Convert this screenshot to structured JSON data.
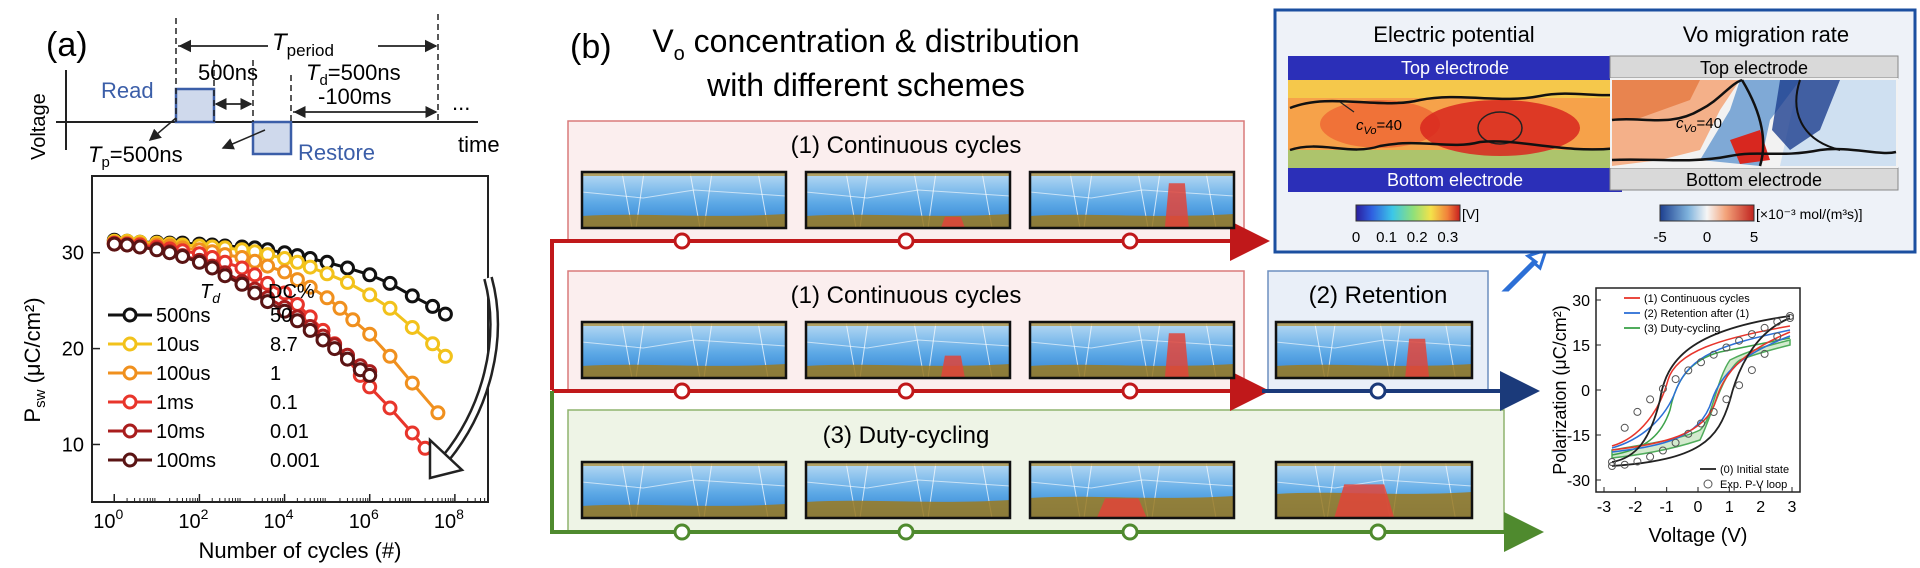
{
  "panel_a": {
    "label": "(a)",
    "timing": {
      "y_axis": "Voltage",
      "x_axis": "time",
      "period": "T",
      "period_sub": "period",
      "read": "Read",
      "restore": "Restore",
      "gap": "500ns",
      "tp": "T",
      "tp_sub": "p",
      "tp_val": "=500ns",
      "td": "T",
      "td_sub": "d",
      "td_val": "=500ns",
      "td_val2": "-100ms",
      "dots": "..."
    },
    "chart_data": {
      "type": "line",
      "ylabel": "P",
      "ylabel_sub": "sw",
      "ylabel_unit": " (μC/cm²)",
      "xlabel": "Number of cycles (#)",
      "x_scale": "log10",
      "xlim": [
        0.3,
        600000000
      ],
      "ylim": [
        4,
        38
      ],
      "x_ticks": [
        "10^0",
        "10^2",
        "10^4",
        "10^6",
        "10^8"
      ],
      "y_ticks": [
        10,
        20,
        30
      ],
      "legend_header": [
        "T_d",
        "DC%"
      ],
      "series": [
        {
          "name": "500ns",
          "dc": "50",
          "color": "#111111",
          "x": [
            1,
            2,
            4,
            10,
            20,
            40,
            100,
            200,
            400,
            1000,
            2000,
            4000,
            10000,
            20000,
            40000,
            100000,
            300000,
            1000000,
            3000000,
            10000000,
            30000000,
            60000000
          ],
          "y": [
            31.3,
            31.2,
            31.1,
            31.1,
            31.0,
            31.0,
            30.9,
            30.8,
            30.7,
            30.6,
            30.5,
            30.3,
            30.0,
            29.7,
            29.4,
            29.0,
            28.4,
            27.7,
            26.8,
            25.5,
            24.4,
            23.6
          ]
        },
        {
          "name": "10us",
          "dc": "8.7",
          "color": "#f2c21b",
          "x": [
            1,
            2,
            4,
            10,
            20,
            40,
            100,
            200,
            400,
            1000,
            2000,
            4000,
            10000,
            20000,
            40000,
            100000,
            300000,
            1000000,
            3000000,
            10000000,
            30000000,
            60000000
          ],
          "y": [
            31.2,
            31.2,
            31.1,
            31.0,
            30.9,
            30.8,
            30.7,
            30.6,
            30.5,
            30.3,
            30.1,
            29.8,
            29.4,
            29.0,
            28.5,
            27.8,
            26.9,
            25.6,
            24.2,
            22.2,
            20.5,
            19.2
          ]
        },
        {
          "name": "100us",
          "dc": "1",
          "color": "#f0901e",
          "x": [
            1,
            2,
            4,
            10,
            20,
            40,
            100,
            200,
            400,
            1000,
            2000,
            4000,
            10000,
            20000,
            40000,
            100000,
            200000,
            400000,
            1000000,
            3000000,
            10000000,
            40000000
          ],
          "y": [
            31.0,
            31.0,
            30.9,
            30.8,
            30.7,
            30.5,
            30.3,
            30.1,
            29.8,
            29.5,
            29.1,
            28.6,
            28.0,
            27.2,
            26.4,
            25.3,
            24.2,
            23.0,
            21.5,
            19.2,
            16.4,
            13.3
          ]
        },
        {
          "name": "1ms",
          "dc": "0.1",
          "color": "#e8352b",
          "x": [
            1,
            2,
            4,
            10,
            20,
            40,
            100,
            200,
            400,
            1000,
            2000,
            4000,
            10000,
            20000,
            40000,
            80000,
            150000,
            300000,
            600000,
            1000000,
            3000000,
            10000000,
            20000000
          ],
          "y": [
            31.0,
            30.9,
            30.8,
            30.6,
            30.4,
            30.2,
            29.9,
            29.5,
            29.0,
            28.4,
            27.7,
            26.8,
            25.8,
            24.6,
            23.3,
            21.9,
            20.5,
            18.9,
            17.2,
            16.0,
            13.8,
            11.2,
            9.6
          ]
        },
        {
          "name": "10ms",
          "dc": "0.01",
          "color": "#a91d1d",
          "x": [
            1,
            2,
            4,
            10,
            20,
            40,
            100,
            200,
            400,
            1000,
            2000,
            4000,
            10000,
            20000,
            40000,
            80000,
            150000,
            300000,
            600000,
            1000000
          ],
          "y": [
            30.9,
            30.8,
            30.6,
            30.4,
            30.1,
            29.7,
            29.2,
            28.6,
            27.9,
            27.0,
            26.2,
            25.3,
            24.3,
            23.3,
            22.3,
            21.3,
            20.4,
            19.3,
            18.2,
            17.6
          ]
        },
        {
          "name": "100ms",
          "dc": "0.001",
          "color": "#5a1414",
          "x": [
            1,
            2,
            4,
            10,
            20,
            40,
            100,
            200,
            400,
            1000,
            2000,
            4000,
            10000,
            20000,
            40000,
            80000,
            150000,
            300000,
            600000,
            1000000
          ],
          "y": [
            30.9,
            30.8,
            30.6,
            30.3,
            30.0,
            29.6,
            29.0,
            28.4,
            27.6,
            26.7,
            25.8,
            24.9,
            23.9,
            22.9,
            21.9,
            20.9,
            20.0,
            18.9,
            17.8,
            17.2
          ]
        }
      ]
    }
  },
  "panel_b": {
    "label": "(b)",
    "title_line1_pre": "V",
    "title_line1_sub": "o",
    "title_line1_post": " concentration & distribution",
    "title_line2": "with different schemes",
    "row1_label": "(1) Continuous cycles",
    "row2_label": "(1) Continuous cycles",
    "retention_label": "(2) Retention",
    "row3_label": "(3) Duty-cycling",
    "inset": {
      "ep_title": "Electric potential",
      "vo_title": "Vo migration rate",
      "top": "Top electrode",
      "bottom": "Bottom electrode",
      "cvo": "c",
      "cvo_sub": "Vo",
      "cvo_val": "=40",
      "cb1_ticks": [
        "0",
        "0.1",
        "0.2",
        "0.3"
      ],
      "cb1_unit": "[V]",
      "cb2_ticks": [
        "-5",
        "0",
        "5"
      ],
      "cb2_unit": "[×10⁻³ mol/(m³s)]"
    }
  },
  "panel_c": {
    "ylabel": "Polarization (μC/cm²)",
    "xlabel": "Voltage (V)",
    "x_ticks": [
      "-3",
      "-2",
      "-1",
      "0",
      "1",
      "2",
      "3"
    ],
    "y_ticks": [
      "30",
      "15",
      "0",
      "-15",
      "-30"
    ],
    "legend_top": [
      "(1) Continuous cycles",
      "(2) Retention after (1)",
      "(3) Duty-cycling"
    ],
    "legend_top_colors": [
      "#e8352b",
      "#2c6fd6",
      "#3da34a"
    ],
    "legend_bottom": [
      "(0) Initial state",
      "Exp. P-V loop"
    ]
  }
}
